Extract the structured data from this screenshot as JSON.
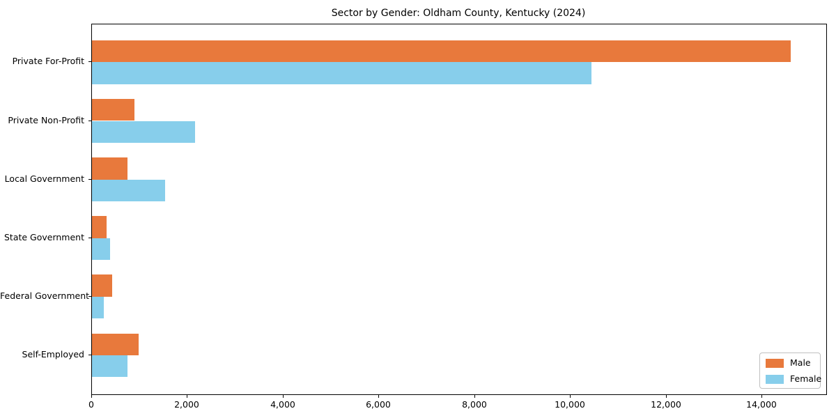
{
  "title": "Sector by Gender: Oldham County, Kentucky (2024)",
  "chart_data": {
    "type": "bar",
    "orientation": "horizontal",
    "title": "Sector by Gender: Oldham County, Kentucky (2024)",
    "categories": [
      "Private For-Profit",
      "Private Non-Profit",
      "Local Government",
      "State Government",
      "Federal Government",
      "Self-Employed"
    ],
    "series": [
      {
        "name": "Male",
        "color": "#e8793c",
        "values": [
          14600,
          890,
          740,
          310,
          420,
          980
        ]
      },
      {
        "name": "Female",
        "color": "#87ceeb",
        "values": [
          10430,
          2150,
          1530,
          380,
          250,
          740
        ]
      }
    ],
    "xlabel": "",
    "ylabel": "",
    "xlim": [
      0,
      15340
    ],
    "xticks": [
      0,
      2000,
      4000,
      6000,
      8000,
      10000,
      12000,
      14000
    ],
    "xtick_labels": [
      "0",
      "2,000",
      "4,000",
      "6,000",
      "8,000",
      "10,000",
      "12,000",
      "14,000"
    ],
    "grid": false,
    "legend": {
      "position": "lower right",
      "entries": [
        "Male",
        "Female"
      ]
    }
  }
}
